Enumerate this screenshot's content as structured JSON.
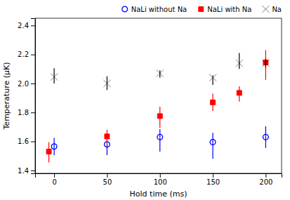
{
  "chart_data": {
    "type": "scatter",
    "xlabel": "Hold time (ms)",
    "ylabel": "Temperature (μK)",
    "xlim": [
      -18,
      215
    ],
    "ylim": [
      1.38,
      2.45
    ],
    "xticks": [
      0,
      50,
      100,
      150,
      200
    ],
    "yticks": [
      1.4,
      1.6,
      1.8,
      {
        "value": 2.0,
        "label": "2.0"
      },
      2.2,
      2.4
    ],
    "grid": false,
    "legend": "upper right",
    "series": [
      {
        "name": "NaLi without Na",
        "color": "#0000ff",
        "marker": "open-circle",
        "x": [
          0,
          50,
          100,
          150,
          200
        ],
        "values": [
          1.565,
          1.58,
          1.63,
          1.595,
          1.63
        ],
        "yerr_lo": [
          0.06,
          0.075,
          0.1,
          0.115,
          0.075
        ],
        "yerr_hi": [
          0.06,
          0.06,
          0.055,
          0.065,
          0.075
        ]
      },
      {
        "name": "NaLi with Na",
        "color": "#ff0000",
        "marker": "square",
        "x": [
          -5,
          50,
          100,
          150,
          175,
          200
        ],
        "values": [
          1.53,
          1.635,
          1.775,
          1.87,
          1.935,
          2.145
        ],
        "yerr_lo": [
          0.075,
          0.06,
          0.08,
          0.06,
          0.06,
          0.12
        ],
        "yerr_hi": [
          0.065,
          0.045,
          0.065,
          0.06,
          0.045,
          0.085
        ]
      },
      {
        "name": "Na",
        "color": "#000000",
        "marker": "x",
        "x": [
          0,
          50,
          100,
          150,
          175,
          200
        ],
        "values": [
          2.045,
          2.0,
          2.07,
          2.04,
          2.14,
          2.14
        ],
        "yerr_lo": [
          0.045,
          0.045,
          0.03,
          0.05,
          0.04,
          0.03
        ],
        "yerr_hi": [
          0.06,
          0.05,
          0.02,
          0.015,
          0.07,
          0.03
        ]
      }
    ]
  }
}
